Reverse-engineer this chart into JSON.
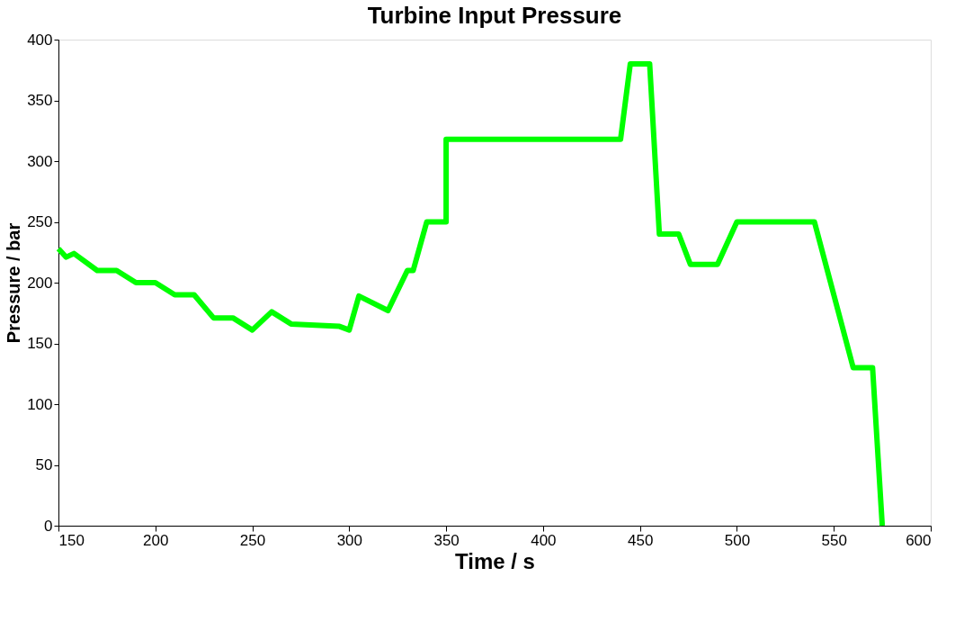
{
  "chart_data": {
    "type": "line",
    "title": "Turbine Input Pressure",
    "xlabel": "Time / s",
    "ylabel": "Pressure / bar",
    "x": [
      150,
      154,
      158,
      170,
      180,
      190,
      200,
      210,
      220,
      230,
      240,
      250,
      260,
      270,
      295,
      300,
      305,
      320,
      330,
      333,
      340,
      350,
      350,
      440,
      445,
      455,
      460,
      470,
      476,
      490,
      500,
      540,
      560,
      570,
      575
    ],
    "series": [
      {
        "color": "#00ff00",
        "values": [
          228,
          221,
          224,
          210,
          210,
          200,
          200,
          190,
          190,
          171,
          171,
          161,
          176,
          166,
          164,
          161,
          189,
          177,
          210,
          210,
          250,
          250,
          318,
          318,
          380,
          380,
          240,
          240,
          215,
          215,
          250,
          250,
          130,
          130,
          0
        ]
      }
    ],
    "xlim": [
      150,
      600
    ],
    "ylim": [
      0,
      400
    ],
    "xticks": [
      150,
      200,
      250,
      300,
      350,
      400,
      450,
      500,
      550,
      600
    ],
    "yticks": [
      0,
      50,
      100,
      150,
      200,
      250,
      300,
      350,
      400
    ],
    "grid": false,
    "marker": "none",
    "line_style": "solid",
    "legend": false
  }
}
